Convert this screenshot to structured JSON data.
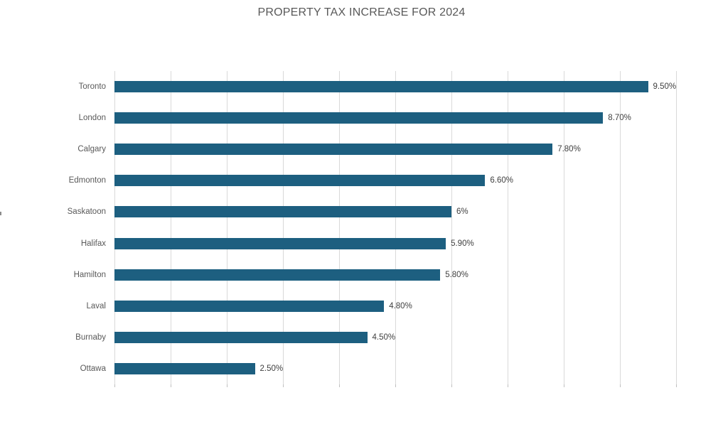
{
  "chart_data": {
    "type": "bar",
    "orientation": "horizontal",
    "title": "PROPERTY TAX INCREASE FOR 2024",
    "categories": [
      "Toronto",
      "London",
      "Calgary",
      "Edmonton",
      "Saskatoon",
      "Halifax",
      "Hamilton",
      "Laval",
      "Burnaby",
      "Ottawa"
    ],
    "values": [
      9.5,
      8.7,
      7.8,
      6.6,
      6,
      5.9,
      5.8,
      4.8,
      4.5,
      2.5
    ],
    "value_labels": [
      "9.50%",
      "8.70%",
      "7.80%",
      "6.60%",
      "6%",
      "5.90%",
      "5.80%",
      "4.80%",
      "4.50%",
      "2.50%"
    ],
    "xlabel": "",
    "ylabel": "",
    "xlim": [
      0,
      10
    ],
    "gridline_interval": 1,
    "x_tick_labels_visible": false,
    "grid": "vertical",
    "legend_position": "none",
    "colors": {
      "bar": "#1d5f80",
      "gridline": "#d9d9d9",
      "tick": "#bfbfbf",
      "title_text": "#595959",
      "category_text": "#595959",
      "value_text": "#404040",
      "background": "#ffffff"
    }
  }
}
